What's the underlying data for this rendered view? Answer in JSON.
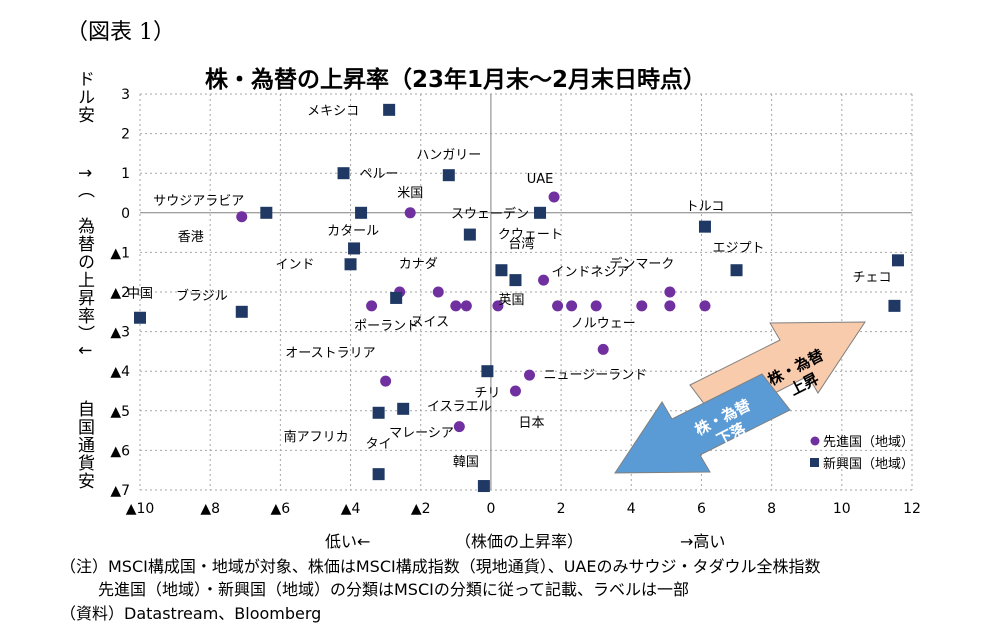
{
  "figure_label": "（図表 1）",
  "axis_note_low": "低い←",
  "axis_note_mid": "（株価の上昇率）",
  "axis_note_high": "→高い",
  "notes": [
    "（注）MSCI構成国・地域が対象、株価はMSCI構成指数（現地通貨）、UAEのみサウジ・タダウル全株指数",
    "先進国（地域）・新興国（地域）の分類はMSCIの分類に従って記載、ラベルは一部",
    "（資料）Datastream、Bloomberg"
  ],
  "arrow_labels": {
    "up": "株・為替\n上昇",
    "down": "株・為替\n下落"
  },
  "colors": {
    "developed": "#7030a0",
    "emerging": "#1f3864",
    "arrow_up": "#f8cbad",
    "arrow_down": "#5b9bd5",
    "grid": "#a6a6a6"
  },
  "chart_data": {
    "type": "scatter",
    "title": "株・為替の上昇率（23年1月末～2月末日時点）",
    "xlabel": "（株価の上昇率）",
    "ylabel_top": "ドル安",
    "ylabel_mid": "↑（　為替の上昇率）↓",
    "ylabel_bottom": "自国通貨安",
    "xlim": [
      -10,
      12
    ],
    "ylim": [
      -7,
      3
    ],
    "x_ticks": [
      -10,
      -8,
      -6,
      -4,
      -2,
      0,
      2,
      4,
      6,
      8,
      10,
      12
    ],
    "x_tick_labels": [
      "▲10",
      "▲8",
      "▲6",
      "▲4",
      "▲2",
      "0",
      "2",
      "4",
      "6",
      "8",
      "10",
      "12"
    ],
    "y_ticks": [
      3,
      2,
      1,
      0,
      -1,
      -2,
      -3,
      -4,
      -5,
      -6,
      -7
    ],
    "y_tick_labels": [
      "3",
      "2",
      "1",
      "0",
      "▲1",
      "▲2",
      "▲3",
      "▲4",
      "▲5",
      "▲6",
      "▲7"
    ],
    "grid": true,
    "legend_position": "bottom-right",
    "series": [
      {
        "name": "先進国（地域）",
        "marker": "circle",
        "points": [
          {
            "x": -7.1,
            "y": -0.1,
            "label": "香港"
          },
          {
            "x": -2.3,
            "y": 0.0,
            "label": "米国"
          },
          {
            "x": 1.8,
            "y": 0.4,
            "label": "UAE"
          },
          {
            "x": 1.5,
            "y": -1.7,
            "label": "英国"
          },
          {
            "x": -3.4,
            "y": -2.35,
            "label": ""
          },
          {
            "x": -2.6,
            "y": -2.0,
            "label": ""
          },
          {
            "x": -1.5,
            "y": -2.0,
            "label": "カナダ"
          },
          {
            "x": -1.0,
            "y": -2.35,
            "label": "スイス"
          },
          {
            "x": -0.7,
            "y": -2.35,
            "label": ""
          },
          {
            "x": 0.2,
            "y": -2.35,
            "label": ""
          },
          {
            "x": 1.9,
            "y": -2.35,
            "label": ""
          },
          {
            "x": 2.3,
            "y": -2.35,
            "label": ""
          },
          {
            "x": 3.0,
            "y": -2.35,
            "label": ""
          },
          {
            "x": 4.3,
            "y": -2.35,
            "label": ""
          },
          {
            "x": 5.1,
            "y": -2.0,
            "label": "デンマーク"
          },
          {
            "x": 5.1,
            "y": -2.35,
            "label": ""
          },
          {
            "x": 6.1,
            "y": -2.35,
            "label": ""
          },
          {
            "x": 3.2,
            "y": -3.45,
            "label": "ノルウェー"
          },
          {
            "x": 1.1,
            "y": -4.1,
            "label": "ニュージーランド"
          },
          {
            "x": 0.7,
            "y": -4.5,
            "label": "日本"
          },
          {
            "x": -3.0,
            "y": -4.25,
            "label": "オーストラリア"
          },
          {
            "x": -0.9,
            "y": -5.4,
            "label": "イスラエル"
          }
        ]
      },
      {
        "name": "新興国（地域）",
        "marker": "square",
        "points": [
          {
            "x": -2.9,
            "y": 2.6,
            "label": "メキシコ"
          },
          {
            "x": -4.2,
            "y": 1.0,
            "label": "ペルー"
          },
          {
            "x": -1.2,
            "y": 0.95,
            "label": "ハンガリー"
          },
          {
            "x": -6.4,
            "y": 0.0,
            "label": "サウジアラビア"
          },
          {
            "x": -3.7,
            "y": 0.0,
            "label": "カタール"
          },
          {
            "x": 1.4,
            "y": 0.0,
            "label": "スウェーデン"
          },
          {
            "x": -0.6,
            "y": -0.55,
            "label": "クウェート"
          },
          {
            "x": -3.9,
            "y": -0.9,
            "label": ""
          },
          {
            "x": -4.0,
            "y": -1.3,
            "label": "インド"
          },
          {
            "x": 0.3,
            "y": -1.45,
            "label": "台湾"
          },
          {
            "x": 0.7,
            "y": -1.7,
            "label": "インドネシア"
          },
          {
            "x": 6.1,
            "y": -0.35,
            "label": "トルコ"
          },
          {
            "x": 7.0,
            "y": -1.45,
            "label": "エジプト"
          },
          {
            "x": 11.6,
            "y": -1.2,
            "label": "チェコ"
          },
          {
            "x": 11.5,
            "y": -2.35,
            "label": ""
          },
          {
            "x": -10.0,
            "y": -2.65,
            "label": "中国"
          },
          {
            "x": -7.1,
            "y": -2.5,
            "label": "ブラジル"
          },
          {
            "x": -2.7,
            "y": -2.15,
            "label": "ポーランド"
          },
          {
            "x": -0.1,
            "y": -4.0,
            "label": "チリ"
          },
          {
            "x": -3.2,
            "y": -5.05,
            "label": "南アフリカ"
          },
          {
            "x": -2.5,
            "y": -4.95,
            "label": "マレーシア"
          },
          {
            "x": -3.2,
            "y": -6.6,
            "label": "タイ"
          },
          {
            "x": -0.2,
            "y": -6.9,
            "label": "韓国"
          }
        ]
      }
    ]
  }
}
